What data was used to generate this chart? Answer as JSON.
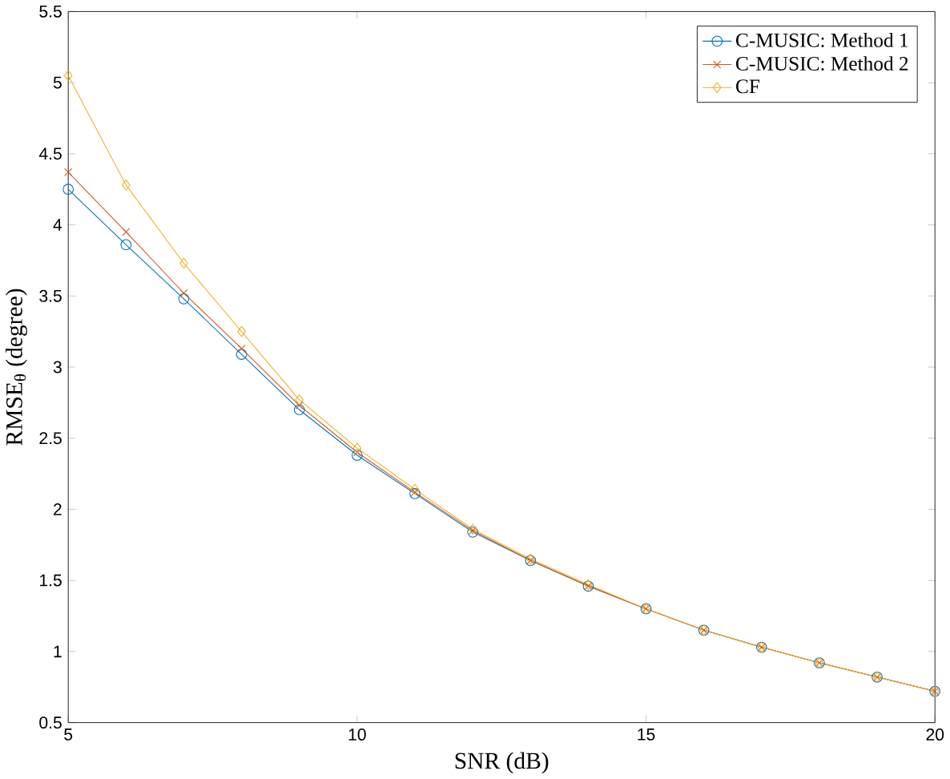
{
  "chart_data": {
    "type": "line",
    "xlabel": "SNR (dB)",
    "ylabel": "RMSE$_{θ}$ (degree)",
    "x": [
      5,
      6,
      7,
      8,
      9,
      10,
      11,
      12,
      13,
      14,
      15,
      16,
      17,
      18,
      19,
      20
    ],
    "series": [
      {
        "name": "C-MUSIC: Method 1",
        "color": "#0072bd",
        "marker": "circle",
        "values": [
          4.25,
          3.86,
          3.48,
          3.09,
          2.7,
          2.38,
          2.11,
          1.84,
          1.64,
          1.46,
          1.3,
          1.15,
          1.03,
          0.92,
          0.82,
          0.72
        ]
      },
      {
        "name": "C-MUSIC: Method 2",
        "color": "#d95319",
        "marker": "cross",
        "values": [
          4.37,
          3.95,
          3.52,
          3.13,
          2.73,
          2.4,
          2.12,
          1.85,
          1.64,
          1.46,
          1.3,
          1.15,
          1.03,
          0.92,
          0.82,
          0.72
        ]
      },
      {
        "name": "CF",
        "color": "#edb120",
        "marker": "diamond",
        "values": [
          5.05,
          4.28,
          3.73,
          3.25,
          2.77,
          2.43,
          2.14,
          1.86,
          1.65,
          1.47,
          1.3,
          1.15,
          1.03,
          0.92,
          0.82,
          0.72
        ]
      }
    ],
    "xlim": [
      5,
      20
    ],
    "ylim": [
      0.5,
      5.5
    ],
    "xticks": [
      5,
      10,
      15,
      20
    ],
    "yticks": [
      0.5,
      1,
      1.5,
      2,
      2.5,
      3,
      3.5,
      4,
      4.5,
      5,
      5.5
    ],
    "grid": false,
    "legend": "top right",
    "line_style": "solid"
  }
}
